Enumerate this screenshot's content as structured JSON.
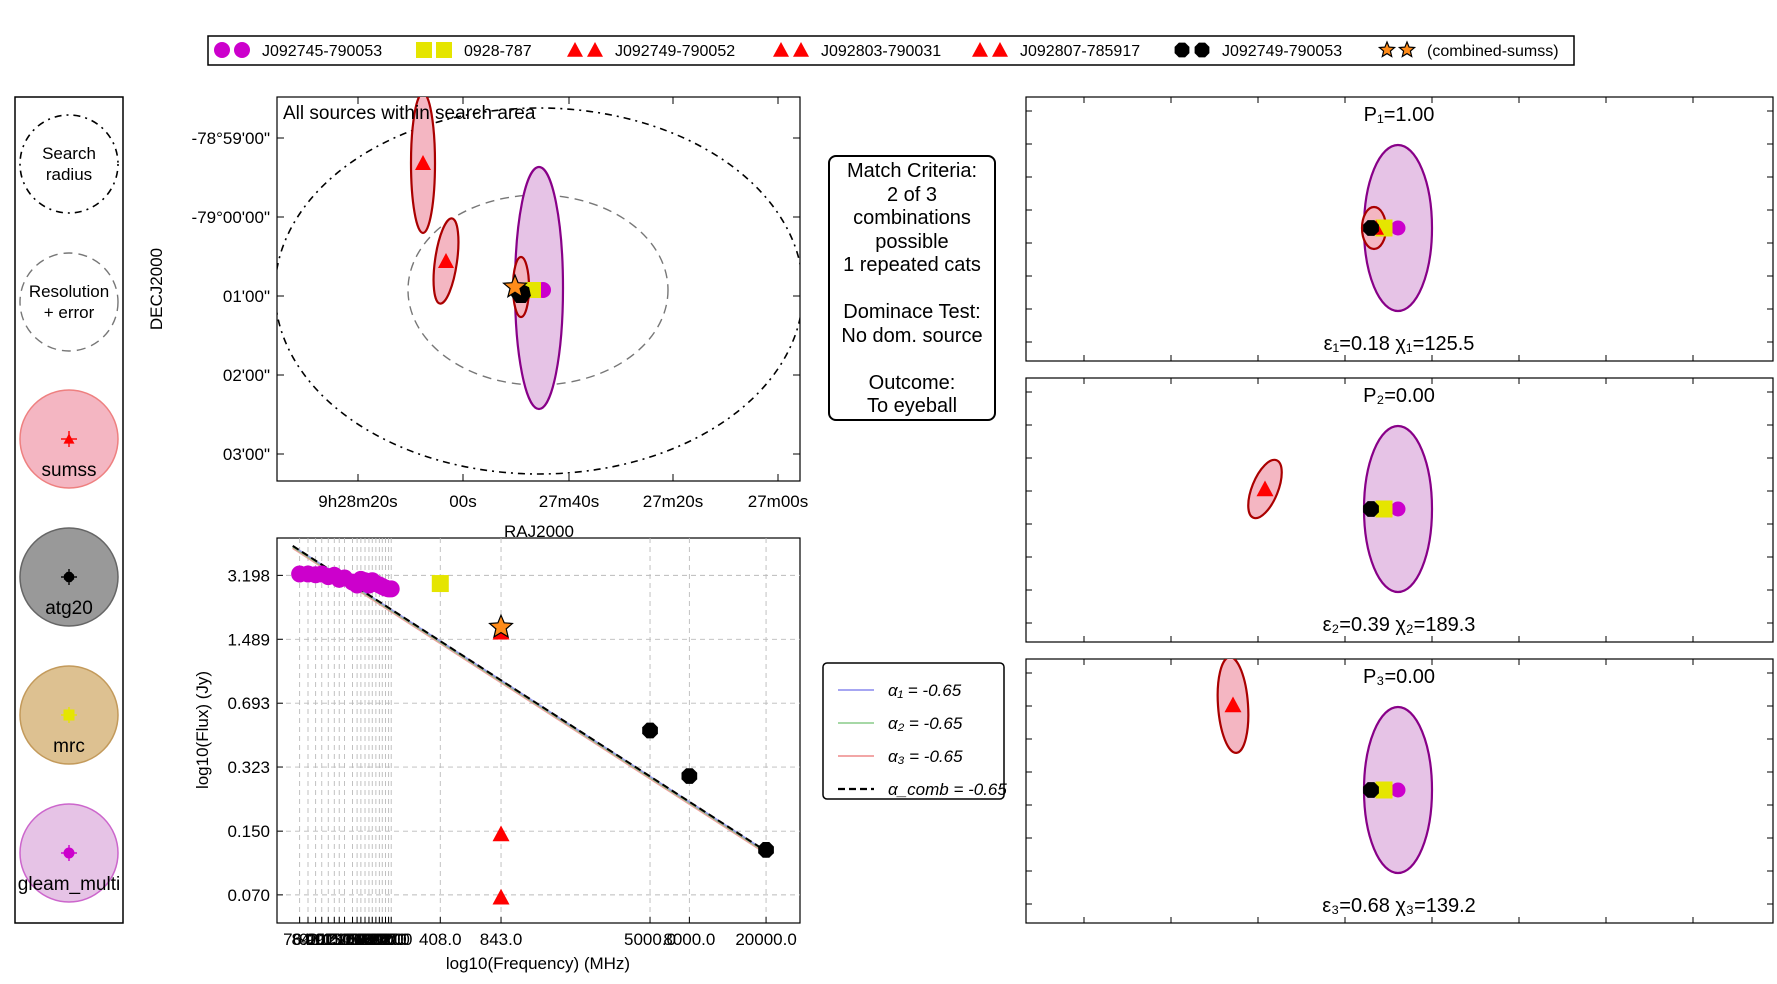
{
  "legend_top": {
    "entries": [
      {
        "label": "J092745-790053",
        "marker": "circle",
        "color": "#cc00cc"
      },
      {
        "label": "0928-787",
        "marker": "square",
        "color": "#e5e500"
      },
      {
        "label": "J092749-790052",
        "marker": "triangle",
        "color": "#ff0000"
      },
      {
        "label": "J092803-790031",
        "marker": "triangle",
        "color": "#ff0000"
      },
      {
        "label": "J092807-785917",
        "marker": "triangle",
        "color": "#ff0000"
      },
      {
        "label": "J092749-790053",
        "marker": "octagon",
        "color": "#000000"
      },
      {
        "label": "(combined-sumss)",
        "marker": "star",
        "color": "#ff8c1a"
      }
    ]
  },
  "key_panel": {
    "search_label_1": "Search",
    "search_label_2": "radius",
    "res_label_1": "Resolution",
    "res_label_2": "+ error",
    "catalogues": [
      {
        "name": "sumss",
        "fill": "#f4b6c2",
        "edge": "#ee8080",
        "marker": "triangle",
        "marker_color": "#ff0000"
      },
      {
        "name": "atg20",
        "fill": "#999999",
        "edge": "#666666",
        "marker": "octagon",
        "marker_color": "#000000"
      },
      {
        "name": "mrc",
        "fill": "#ddc191",
        "edge": "#c39a5b",
        "marker": "square",
        "marker_color": "#e5e500"
      },
      {
        "name": "gleam_multi",
        "fill": "#e6c3e6",
        "edge": "#cc66cc",
        "marker": "circle",
        "marker_color": "#cc00cc"
      }
    ]
  },
  "sky_plot": {
    "title": "All sources within search area",
    "xlabel": "RAJ2000",
    "ylabel": "DECJ2000",
    "xticks": [
      "9h28m20s",
      "00s",
      "27m40s",
      "27m20s",
      "27m00s"
    ],
    "yticks": [
      "-78°59'00\"",
      "-79°00'00\"",
      "01'00\"",
      "02'00\"",
      "03'00\""
    ]
  },
  "criteria": {
    "lines": [
      "Match Criteria:",
      "2 of 3",
      "combinations",
      "possible",
      "1 repeated cats",
      "",
      "Dominace Test:",
      "No dom. source",
      "",
      "Outcome:",
      "To eyeball"
    ]
  },
  "sed_legend": {
    "entries": [
      {
        "label": "α₁ = -0.65",
        "color": "#8888ee",
        "style": "solid"
      },
      {
        "label": "α₂ = -0.65",
        "color": "#88cc88",
        "style": "solid"
      },
      {
        "label": "α₃ = -0.65",
        "color": "#ee8888",
        "style": "solid"
      },
      {
        "label": "α_comb = -0.65",
        "color": "#000000",
        "style": "dashed"
      }
    ]
  },
  "chart_data": [
    {
      "type": "scatter",
      "id": "sed",
      "xlabel": "log10(Frequency) (MHz)",
      "ylabel": "log10(Flux) (Jy)",
      "scale": "log-log",
      "xlim": [
        58,
        30000
      ],
      "ylim": [
        0.05,
        5.0
      ],
      "yticks": [
        "3.198",
        "1.489",
        "0.693",
        "0.323",
        "0.150",
        "0.070"
      ],
      "xticks": [
        "76.0",
        "84.0",
        "92.0",
        "99.0",
        "107.0",
        "115.0",
        "122.0",
        "130.0",
        "143.0",
        "151.0",
        "158.0",
        "166.0",
        "174.0",
        "181.0",
        "189.0",
        "197.0",
        "204.0",
        "212.0",
        "220.0",
        "227.0",
        "408.0",
        "843.0",
        "5000.0",
        "8000.0",
        "20000.0"
      ],
      "series": [
        {
          "name": "J092745-790053",
          "marker": "circle",
          "color": "#cc00cc",
          "x": [
            76,
            84,
            92,
            99,
            107,
            115,
            122,
            130,
            143,
            151,
            158,
            166,
            174,
            181,
            189,
            197,
            204,
            212,
            220,
            227
          ],
          "y": [
            3.25,
            3.25,
            3.22,
            3.25,
            3.15,
            3.2,
            3.05,
            3.1,
            2.95,
            2.85,
            3.05,
            3.0,
            2.85,
            3.0,
            2.9,
            2.85,
            2.8,
            2.75,
            2.72,
            2.72
          ]
        },
        {
          "name": "0928-787",
          "marker": "square",
          "color": "#e5e500",
          "x": [
            408
          ],
          "y": [
            2.9
          ]
        },
        {
          "name": "J092749-790052",
          "marker": "triangle",
          "color": "#ff0000",
          "x": [
            843
          ],
          "y": [
            1.62
          ]
        },
        {
          "name": "J092803-790031",
          "marker": "triangle",
          "color": "#ff0000",
          "x": [
            843
          ],
          "y": [
            0.145
          ]
        },
        {
          "name": "J092807-785917",
          "marker": "triangle",
          "color": "#ff0000",
          "x": [
            843
          ],
          "y": [
            0.068
          ]
        },
        {
          "name": "J092749-790053",
          "marker": "octagon",
          "color": "#000000",
          "x": [
            5000,
            8000,
            20000
          ],
          "y": [
            0.5,
            0.29,
            0.12
          ]
        },
        {
          "name": "(combined-sumss)",
          "marker": "star",
          "color": "#ff8c1a",
          "x": [
            843
          ],
          "y": [
            1.72
          ]
        }
      ],
      "fit_lines": [
        {
          "name": "α_comb = -0.65",
          "x": [
            70,
            20000
          ],
          "y": [
            4.55,
            0.118
          ],
          "style": "dashed"
        }
      ]
    },
    {
      "type": "scatter",
      "id": "combinations",
      "panels": [
        {
          "prob_label": "P₁=1.00",
          "stats_label": "ε₁=0.18 χ₁=125.5"
        },
        {
          "prob_label": "P₂=0.00",
          "stats_label": "ε₂=0.39 χ₂=189.3"
        },
        {
          "prob_label": "P₃=0.00",
          "stats_label": "ε₃=0.68 χ₃=139.2"
        }
      ]
    }
  ]
}
